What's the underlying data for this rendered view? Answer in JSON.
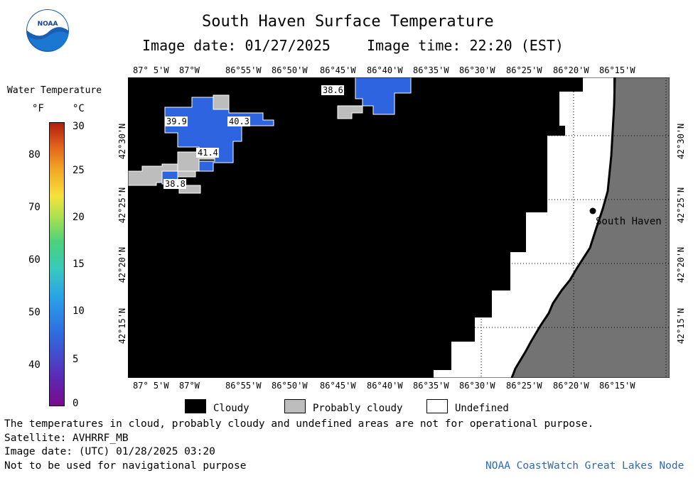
{
  "header": {
    "title": "South Haven Surface Temperature",
    "image_date": "Image date: 01/27/2025",
    "image_time": "Image time: 22:20 (EST)"
  },
  "logo": {
    "text": "NOAA",
    "icon": "noaa-logo-icon"
  },
  "colorbar": {
    "title": "Water Temperature",
    "unit_f": "°F",
    "unit_c": "°C",
    "f_ticks": [
      "80",
      "70",
      "60",
      "50",
      "40"
    ],
    "c_ticks": [
      "30",
      "25",
      "20",
      "15",
      "10",
      "5",
      "0"
    ]
  },
  "axes": {
    "lon_ticks": [
      "87° 5'W",
      "87°W",
      "86°55'W",
      "86°50'W",
      "86°45'W",
      "86°40'W",
      "86°35'W",
      "86°30'W",
      "86°25'W",
      "86°20'W",
      "86°15'W"
    ],
    "lat_ticks": [
      "42°30'N",
      "42°25'N",
      "42°20'N",
      "42°15'N"
    ]
  },
  "map": {
    "temperature_labels": [
      "38.6",
      "39.9",
      "40.3",
      "41.4",
      "38.8"
    ],
    "city_label": "South Haven",
    "colors": {
      "cloudy": "#000000",
      "probably_cloudy": "#bdbdbd",
      "undefined": "#ffffff",
      "land": "#737373",
      "water_blue": "#2f64e0"
    }
  },
  "legend": {
    "cloudy": "Cloudy",
    "probably_cloudy": "Probably cloudy",
    "undefined": "Undefined"
  },
  "footer": {
    "note": "The temperatures in cloud, probably cloudy and undefined areas are not for operational purpose.",
    "satellite": "Satellite: AVHRRF_MB",
    "utc_date": "Image date: (UTC) 01/28/2025  03:20",
    "nav_warning": "Not to be used for navigational purpose",
    "credit": "NOAA CoastWatch Great Lakes Node"
  }
}
